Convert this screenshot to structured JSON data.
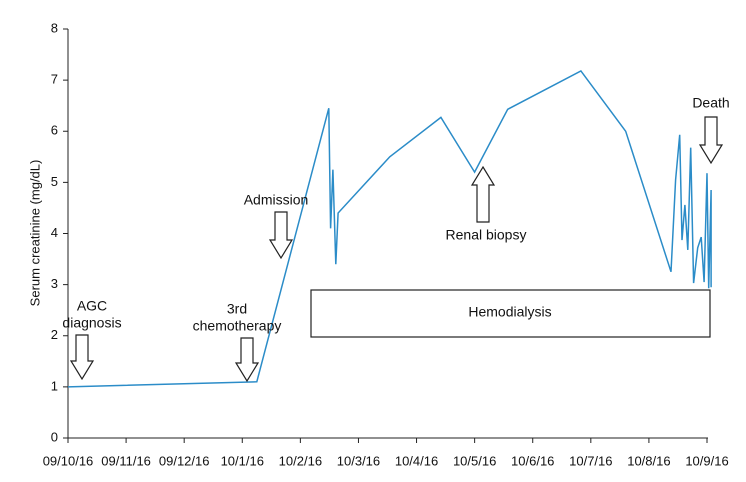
{
  "chart_data": {
    "type": "line",
    "y_label": "Serum creatinine (mg/dL)",
    "xlim": [
      0,
      11
    ],
    "xticks": [
      {
        "value": 0,
        "label": "09/10/16"
      },
      {
        "value": 1,
        "label": "09/11/16"
      },
      {
        "value": 2,
        "label": "09/12/16"
      },
      {
        "value": 3,
        "label": "10/1/16"
      },
      {
        "value": 4,
        "label": "10/2/16"
      },
      {
        "value": 5,
        "label": "10/3/16"
      },
      {
        "value": 6,
        "label": "10/4/16"
      },
      {
        "value": 7,
        "label": "10/5/16"
      },
      {
        "value": 8,
        "label": "10/6/16"
      },
      {
        "value": 9,
        "label": "10/7/16"
      },
      {
        "value": 10,
        "label": "10/8/16"
      },
      {
        "value": 11,
        "label": "10/9/16"
      }
    ],
    "ylim": [
      0,
      8
    ],
    "yticks": [
      0,
      1,
      2,
      3,
      4,
      5,
      6,
      7,
      8
    ],
    "color": "#2b8cc8",
    "x": [
      0,
      3.25,
      4.49,
      4.52,
      4.56,
      4.61,
      4.65,
      5.54,
      6.42,
      7.0,
      7.57,
      8.83,
      9.6,
      10.38,
      10.46,
      10.53,
      10.57,
      10.62,
      10.67,
      10.72,
      10.77,
      10.84,
      10.9,
      10.95,
      11.0,
      11.03,
      11.07,
      11.07
    ],
    "values": [
      1.0,
      1.1,
      6.45,
      4.1,
      5.25,
      3.4,
      4.4,
      5.5,
      6.27,
      5.2,
      6.43,
      7.18,
      6.0,
      3.25,
      5.05,
      5.93,
      3.87,
      4.56,
      3.68,
      5.68,
      3.03,
      3.72,
      3.93,
      3.05,
      5.18,
      2.93,
      4.85,
      2.95
    ],
    "annotations": [
      {
        "lines": [
          "AGC",
          "diagnosis"
        ]
      },
      {
        "lines": [
          "3rd",
          "chemotherapy"
        ]
      },
      {
        "lines": [
          "Admission"
        ]
      },
      {
        "lines": [
          "Renal biopsy"
        ]
      },
      {
        "lines": [
          "Death"
        ]
      },
      {
        "lines": [
          "Hemodialysis"
        ]
      }
    ]
  }
}
